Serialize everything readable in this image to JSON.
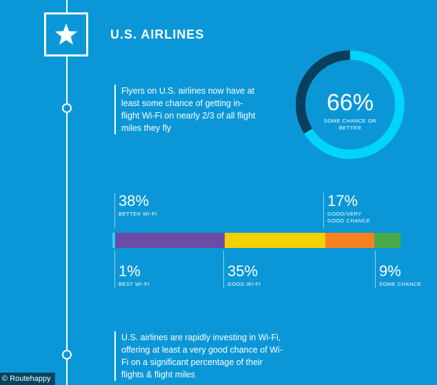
{
  "section": {
    "title": "U.S. AIRLINES",
    "icon": "star-icon"
  },
  "intro_text": "Flyers on U.S. airlines now have at least some chance of getting in-flight Wi-Fi on nearly 2/3 of all flight miles they fly",
  "footer_text": "U.S. airlines are rapidly investing in Wi-Fi, offering at least a very good chance of Wi-Fi on a significant percentage of their flights & flight miles",
  "credit": "© Routehappy",
  "colors": {
    "background": "#0b97d7",
    "donut_fill": "#00d4fb",
    "donut_rest": "#093e5c",
    "best": "#28d3f5",
    "better": "#6c4ba4",
    "good": "#f2d203",
    "good_very_good_chance": "#f5821f",
    "some_chance": "#4aaa4a"
  },
  "chart_data": [
    {
      "type": "pie",
      "values": [
        66,
        34
      ],
      "center_value": "66%",
      "center_label": "SOME CHANCE OR BETTER"
    },
    {
      "type": "bar",
      "stacked": true,
      "orientation": "horizontal",
      "categories": [
        "BEST WI-FI",
        "BETTER WI-FI",
        "GOOD WI-FI",
        "GOOD/VERY GOOD CHANCE",
        "SOME CHANCE"
      ],
      "values": [
        1,
        38,
        35,
        17,
        9
      ],
      "value_labels": [
        "1%",
        "38%",
        "35%",
        "17%",
        "9%"
      ]
    }
  ]
}
